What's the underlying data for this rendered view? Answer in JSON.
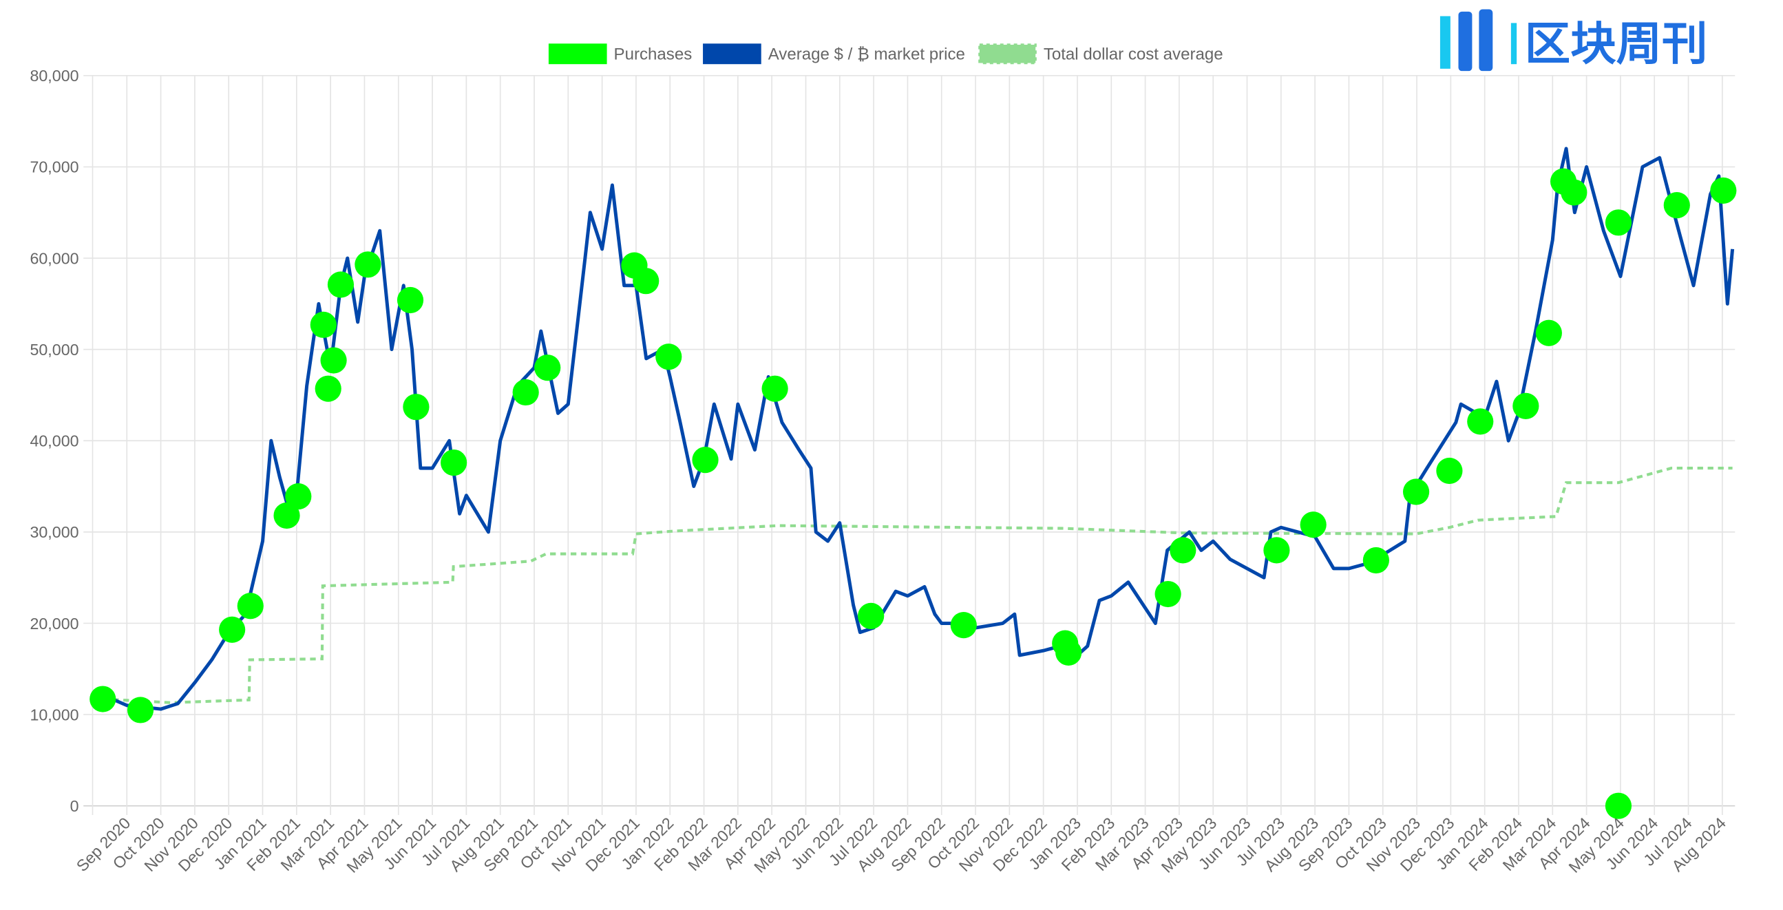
{
  "chart_data": {
    "type": "line",
    "x_unit": "months since 2020-09-01",
    "xlim": [
      -1,
      47.3
    ],
    "ylim": [
      0,
      80000
    ],
    "grid": true,
    "legend_position": "top-center",
    "yticks": [
      "0",
      "10,000",
      "20,000",
      "30,000",
      "40,000",
      "50,000",
      "60,000",
      "70,000",
      "80,000"
    ],
    "xticks": [
      "Sep 2020",
      "Oct 2020",
      "Nov 2020",
      "Dec 2020",
      "Jan 2021",
      "Feb 2021",
      "Mar 2021",
      "Apr 2021",
      "May 2021",
      "Jun 2021",
      "Jul 2021",
      "Aug 2021",
      "Sep 2021",
      "Oct 2021",
      "Nov 2021",
      "Dec 2021",
      "Jan 2022",
      "Feb 2022",
      "Mar 2022",
      "Apr 2022",
      "May 2022",
      "Jun 2022",
      "Jul 2022",
      "Aug 2022",
      "Sep 2022",
      "Oct 2022",
      "Nov 2022",
      "Dec 2022",
      "Jan 2023",
      "Feb 2023",
      "Mar 2023",
      "Apr 2023",
      "May 2023",
      "Jun 2023",
      "Jul 2023",
      "Aug 2023",
      "Sep 2023",
      "Oct 2023",
      "Nov 2023",
      "Dec 2023",
      "Jan 2024",
      "Feb 2024",
      "Mar 2024",
      "Apr 2024",
      "May 2024",
      "Jun 2024",
      "Jul 2024",
      "Aug 2024"
    ],
    "series": [
      {
        "name": "Purchases",
        "kind": "scatter",
        "color": "#00ff00",
        "points": [
          [
            -0.71,
            11700
          ],
          [
            0.4,
            10500
          ],
          [
            3.1,
            19300
          ],
          [
            3.64,
            21900
          ],
          [
            4.71,
            31800
          ],
          [
            5.05,
            33900
          ],
          [
            5.79,
            52700
          ],
          [
            5.93,
            45700
          ],
          [
            6.09,
            48800
          ],
          [
            6.3,
            57100
          ],
          [
            7.1,
            59300
          ],
          [
            8.35,
            55400
          ],
          [
            8.52,
            43700
          ],
          [
            9.63,
            37600
          ],
          [
            11.75,
            45300
          ],
          [
            12.39,
            48000
          ],
          [
            14.95,
            59200
          ],
          [
            15.29,
            57500
          ],
          [
            15.96,
            49200
          ],
          [
            17.04,
            37900
          ],
          [
            19.09,
            45700
          ],
          [
            21.92,
            20800
          ],
          [
            24.65,
            19800
          ],
          [
            27.64,
            17800
          ],
          [
            27.74,
            16800
          ],
          [
            30.67,
            23200
          ],
          [
            31.11,
            28000
          ],
          [
            33.87,
            28000
          ],
          [
            34.95,
            30800
          ],
          [
            36.8,
            26900
          ],
          [
            37.98,
            34400
          ],
          [
            38.96,
            36700
          ],
          [
            39.87,
            42100
          ],
          [
            41.21,
            43800
          ],
          [
            41.89,
            51800
          ],
          [
            42.32,
            68400
          ],
          [
            42.63,
            67200
          ],
          [
            43.94,
            63900
          ],
          [
            43.94,
            0
          ],
          [
            45.66,
            65800
          ],
          [
            47.03,
            67400
          ]
        ]
      },
      {
        "name": "Average $ / ₿ market price",
        "kind": "line",
        "color": "#0047ab",
        "points": [
          [
            -0.5,
            11800
          ],
          [
            0,
            11000
          ],
          [
            1,
            10600
          ],
          [
            1.5,
            11200
          ],
          [
            2,
            13500
          ],
          [
            2.5,
            16000
          ],
          [
            3,
            19000
          ],
          [
            3.5,
            21000
          ],
          [
            4,
            29000
          ],
          [
            4.25,
            40000
          ],
          [
            4.5,
            36000
          ],
          [
            4.8,
            32000
          ],
          [
            5,
            34000
          ],
          [
            5.3,
            46000
          ],
          [
            5.65,
            55000
          ],
          [
            6,
            48000
          ],
          [
            6.3,
            57000
          ],
          [
            6.5,
            60000
          ],
          [
            6.8,
            53000
          ],
          [
            7,
            58000
          ],
          [
            7.45,
            63000
          ],
          [
            7.8,
            50000
          ],
          [
            8.15,
            57000
          ],
          [
            8.4,
            50000
          ],
          [
            8.65,
            37000
          ],
          [
            9,
            37000
          ],
          [
            9.5,
            40000
          ],
          [
            9.8,
            32000
          ],
          [
            10,
            34000
          ],
          [
            10.65,
            30000
          ],
          [
            11,
            40000
          ],
          [
            11.5,
            46000
          ],
          [
            12,
            48000
          ],
          [
            12.2,
            52000
          ],
          [
            12.7,
            43000
          ],
          [
            13,
            44000
          ],
          [
            13.5,
            60000
          ],
          [
            13.65,
            65000
          ],
          [
            14,
            61000
          ],
          [
            14.3,
            68000
          ],
          [
            14.65,
            57000
          ],
          [
            15,
            57000
          ],
          [
            15.3,
            49000
          ],
          [
            15.8,
            50000
          ],
          [
            16,
            47000
          ],
          [
            16.3,
            42000
          ],
          [
            16.7,
            35000
          ],
          [
            17,
            38000
          ],
          [
            17.3,
            44000
          ],
          [
            17.8,
            38000
          ],
          [
            18,
            44000
          ],
          [
            18.5,
            39000
          ],
          [
            18.9,
            47000
          ],
          [
            19.3,
            42000
          ],
          [
            19.8,
            39000
          ],
          [
            20.15,
            37000
          ],
          [
            20.3,
            30000
          ],
          [
            20.65,
            29000
          ],
          [
            21,
            31000
          ],
          [
            21.4,
            22000
          ],
          [
            21.6,
            19000
          ],
          [
            22,
            19500
          ],
          [
            22.65,
            23500
          ],
          [
            23,
            23000
          ],
          [
            23.5,
            24000
          ],
          [
            23.8,
            21000
          ],
          [
            24,
            20000
          ],
          [
            24.5,
            20000
          ],
          [
            25,
            19500
          ],
          [
            25.8,
            20000
          ],
          [
            26.15,
            21000
          ],
          [
            26.3,
            16500
          ],
          [
            27,
            17000
          ],
          [
            27.5,
            17500
          ],
          [
            28,
            16500
          ],
          [
            28.3,
            17500
          ],
          [
            28.65,
            22500
          ],
          [
            29,
            23000
          ],
          [
            29.5,
            24500
          ],
          [
            30.3,
            20000
          ],
          [
            30.65,
            28000
          ],
          [
            31.3,
            30000
          ],
          [
            31.65,
            28000
          ],
          [
            32,
            29000
          ],
          [
            32.5,
            27000
          ],
          [
            33.5,
            25000
          ],
          [
            33.7,
            30000
          ],
          [
            34,
            30500
          ],
          [
            34.5,
            30000
          ],
          [
            35,
            29500
          ],
          [
            35.55,
            26000
          ],
          [
            36,
            26000
          ],
          [
            36.5,
            26500
          ],
          [
            37,
            27500
          ],
          [
            37.65,
            29000
          ],
          [
            37.8,
            34000
          ],
          [
            38.3,
            37000
          ],
          [
            39.15,
            42000
          ],
          [
            39.3,
            44000
          ],
          [
            40,
            42500
          ],
          [
            40.35,
            46500
          ],
          [
            40.7,
            40000
          ],
          [
            41,
            43000
          ],
          [
            41.5,
            52000
          ],
          [
            42,
            62000
          ],
          [
            42.15,
            68000
          ],
          [
            42.4,
            72000
          ],
          [
            42.65,
            65000
          ],
          [
            43,
            70000
          ],
          [
            43.5,
            63000
          ],
          [
            44,
            58000
          ],
          [
            44.65,
            70000
          ],
          [
            45.15,
            71000
          ],
          [
            45.5,
            66000
          ],
          [
            46.15,
            57000
          ],
          [
            46.65,
            67000
          ],
          [
            46.9,
            69000
          ],
          [
            47.15,
            55000
          ],
          [
            47.3,
            61000
          ]
        ]
      },
      {
        "name": "Total dollar cost average",
        "kind": "dashed-line",
        "color": "#90dc90",
        "points": [
          [
            -0.71,
            11700
          ],
          [
            1.3,
            11300
          ],
          [
            3.6,
            11600
          ],
          [
            3.62,
            16000
          ],
          [
            5.75,
            16100
          ],
          [
            5.77,
            24100
          ],
          [
            9.6,
            24500
          ],
          [
            9.62,
            26200
          ],
          [
            11.9,
            26800
          ],
          [
            12.35,
            27600
          ],
          [
            14.9,
            27600
          ],
          [
            15.0,
            29800
          ],
          [
            16.1,
            30100
          ],
          [
            19.2,
            30700
          ],
          [
            27.6,
            30400
          ],
          [
            31.1,
            29900
          ],
          [
            37.98,
            29800
          ],
          [
            38.96,
            30500
          ],
          [
            39.8,
            31300
          ],
          [
            42.1,
            31700
          ],
          [
            42.4,
            35400
          ],
          [
            43.94,
            35400
          ],
          [
            45.5,
            37000
          ],
          [
            47.3,
            37000
          ]
        ]
      }
    ]
  },
  "watermark": {
    "logo_text": "区块周刊"
  }
}
